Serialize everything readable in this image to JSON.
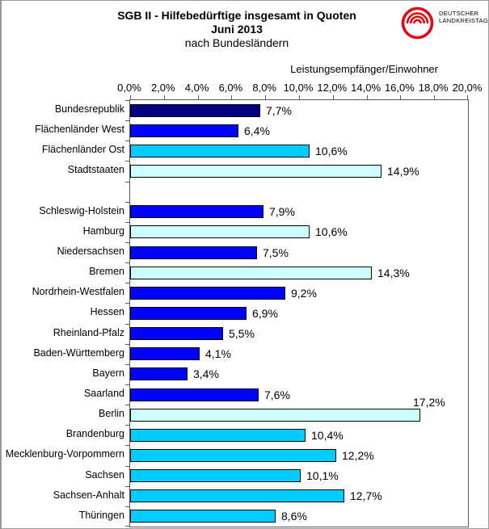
{
  "header": {
    "title_line1": "SGB II - Hilfebedürftige insgesamt in Quoten",
    "title_line2": "Juni 2013",
    "title_line3": "nach Bundesländern"
  },
  "logo": {
    "text_line1": "DEUTSCHER",
    "text_line2": "LANDKREISTAG",
    "ring_color": "#e30613",
    "text_color": "#7a7a7a"
  },
  "chart_data": {
    "type": "bar",
    "orientation": "horizontal",
    "title": "SGB II - Hilfebedürftige insgesamt in Quoten Juni 2013 nach Bundesländern",
    "axis_title": "Leistungsempfänger/Einwohner",
    "xlim": [
      0,
      20
    ],
    "x_tick_values": [
      0,
      2,
      4,
      6,
      8,
      10,
      12,
      14,
      16,
      18,
      20
    ],
    "x_tick_labels": [
      "0,0%",
      "2,0%",
      "4,0%",
      "6,0%",
      "8,0%",
      "10,0%",
      "12,0%",
      "14,0%",
      "16,0%",
      "18,0%",
      "20,0%"
    ],
    "grid": false,
    "legend": false,
    "bar_border_color": "#000000",
    "colors": {
      "navy": "#000080",
      "blue": "#0000ff",
      "sky_blue": "#00ccff",
      "light_turquoise": "#ccffff"
    },
    "bars": [
      {
        "category": "Bundesrepublik",
        "value": 7.7,
        "label": "7,7%",
        "color": "#000080"
      },
      {
        "category": "Flächenländer West",
        "value": 6.4,
        "label": "6,4%",
        "color": "#0000ff"
      },
      {
        "category": "Flächenländer Ost",
        "value": 10.6,
        "label": "10,6%",
        "color": "#00ccff"
      },
      {
        "category": "Stadtstaaten",
        "value": 14.9,
        "label": "14,9%",
        "color": "#ccffff"
      },
      {
        "category": "",
        "value": null,
        "label": "",
        "color": "",
        "spacer": true
      },
      {
        "category": "Schleswig-Holstein",
        "value": 7.9,
        "label": "7,9%",
        "color": "#0000ff"
      },
      {
        "category": "Hamburg",
        "value": 10.6,
        "label": "10,6%",
        "color": "#ccffff"
      },
      {
        "category": "Niedersachsen",
        "value": 7.5,
        "label": "7,5%",
        "color": "#0000ff"
      },
      {
        "category": "Bremen",
        "value": 14.3,
        "label": "14,3%",
        "color": "#ccffff"
      },
      {
        "category": "Nordrhein-Westfalen",
        "value": 9.2,
        "label": "9,2%",
        "color": "#0000ff"
      },
      {
        "category": "Hessen",
        "value": 6.9,
        "label": "6,9%",
        "color": "#0000ff"
      },
      {
        "category": "Rheinland-Pfalz",
        "value": 5.5,
        "label": "5,5%",
        "color": "#0000ff"
      },
      {
        "category": "Baden-Württemberg",
        "value": 4.1,
        "label": "4,1%",
        "color": "#0000ff"
      },
      {
        "category": "Bayern",
        "value": 3.4,
        "label": "3,4%",
        "color": "#0000ff"
      },
      {
        "category": "Saarland",
        "value": 7.6,
        "label": "7,6%",
        "color": "#0000ff"
      },
      {
        "category": "Berlin",
        "value": 17.2,
        "label": "17,2%",
        "color": "#ccffff",
        "label_position": "above"
      },
      {
        "category": "Brandenburg",
        "value": 10.4,
        "label": "10,4%",
        "color": "#00ccff"
      },
      {
        "category": "Mecklenburg-Vorpommern",
        "value": 12.2,
        "label": "12,2%",
        "color": "#00ccff"
      },
      {
        "category": "Sachsen",
        "value": 10.1,
        "label": "10,1%",
        "color": "#00ccff"
      },
      {
        "category": "Sachsen-Anhalt",
        "value": 12.7,
        "label": "12,7%",
        "color": "#00ccff"
      },
      {
        "category": "Thüringen",
        "value": 8.6,
        "label": "8,6%",
        "color": "#00ccff"
      }
    ]
  }
}
